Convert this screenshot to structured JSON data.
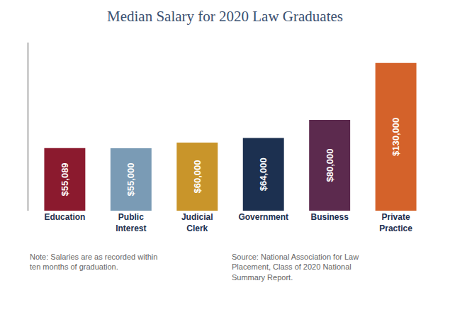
{
  "chart_data": {
    "type": "bar",
    "title": "Median Salary for 2020 Law Graduates",
    "categories": [
      "Education",
      "Public\nInterest",
      "Judicial\nClerk",
      "Government",
      "Business",
      "Private\nPractice"
    ],
    "values": [
      55089,
      55000,
      60000,
      64000,
      80000,
      130000
    ],
    "value_labels": [
      "$55,089",
      "$55,000",
      "$60,000",
      "$64,000",
      "$80,000",
      "$130,000"
    ],
    "data_labels": true,
    "colors": [
      "#8B1A2E",
      "#7A9BB5",
      "#C9952A",
      "#1C3050",
      "#5C2A4E",
      "#D4622A"
    ],
    "ylim": [
      0,
      148000
    ],
    "grid": false,
    "tick_labels": "x",
    "annotations": [
      "Note: Salaries are as recorded within\nten months of graduation.",
      "Source: National Association for Law\nPlacement, Class of 2020 National\nSummary Report."
    ]
  }
}
